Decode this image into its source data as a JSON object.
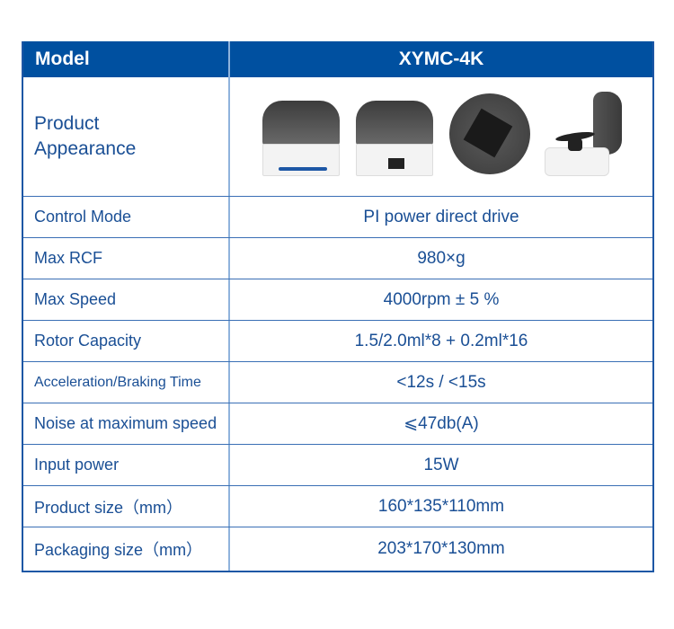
{
  "header": {
    "label": "Model",
    "value": "XYMC-4K"
  },
  "appearance": {
    "label_line1": "Product",
    "label_line2": "Appearance",
    "images": [
      "front-view",
      "rear-view",
      "top-view",
      "open-lid-view"
    ]
  },
  "rows": [
    {
      "label": "Control Mode",
      "value": "PI power direct drive"
    },
    {
      "label": "Max RCF",
      "value": "980×g"
    },
    {
      "label": "Max Speed",
      "value": "4000rpm ± 5 %"
    },
    {
      "label": "Rotor Capacity",
      "value": "1.5/2.0ml*8 + 0.2ml*16"
    },
    {
      "label": "Acceleration/Braking Time",
      "value": "<12s / <15s"
    },
    {
      "label": "Noise at maximum speed",
      "value": "⩽47db(A)"
    },
    {
      "label": "Input power",
      "value": "15W"
    },
    {
      "label": "Product size（mm）",
      "value": "160*135*110mm"
    },
    {
      "label": "Packaging size（mm）",
      "value": "203*170*130mm"
    }
  ],
  "colors": {
    "header_bg": "#0050a0",
    "text": "#1a4f95",
    "border": "#1d57a5"
  }
}
